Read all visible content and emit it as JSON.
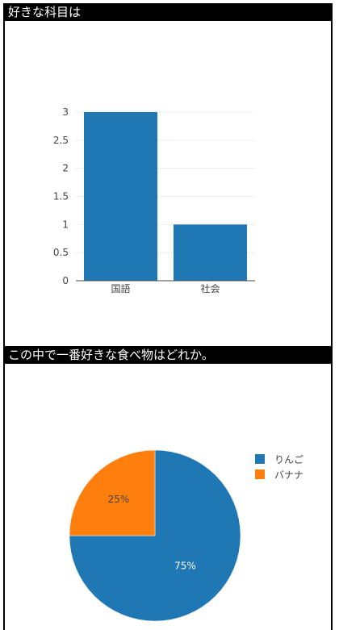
{
  "sections": [
    {
      "title": "好きな科目は",
      "chart_data": {
        "type": "bar",
        "categories": [
          "国語",
          "社会"
        ],
        "values": [
          3,
          1
        ],
        "ylim": [
          0,
          3
        ],
        "yticks": [
          "0",
          "0.5",
          "1",
          "1.5",
          "2",
          "2.5",
          "3"
        ],
        "color": "#1f77b4",
        "grid": true
      }
    },
    {
      "title": "この中で一番好きな食べ物はどれか。",
      "chart_data": {
        "type": "pie",
        "labels": [
          "りんご",
          "バナナ"
        ],
        "values": [
          75,
          25
        ],
        "percent_labels": [
          "75%",
          "25%"
        ],
        "colors": [
          "#1f77b4",
          "#ff7f0e"
        ],
        "legend": "right"
      }
    }
  ]
}
